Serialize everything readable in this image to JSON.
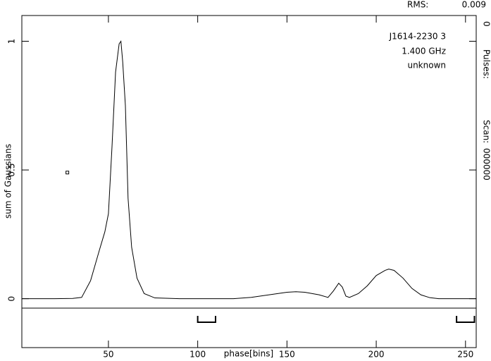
{
  "chart_data": {
    "type": "line",
    "x_label": "phase[bins]",
    "y_label": "sum of Gaussians",
    "annotations": [
      "J1614-2230 3",
      "1.400 GHz",
      "unknown"
    ],
    "rms_label": "RMS:",
    "rms": 0.009,
    "pulses_label": "Pulses:",
    "pulses": 0,
    "scan_label": "Scan:",
    "scan": "000000",
    "x": [
      1.5,
      20,
      30,
      35,
      40,
      45,
      48,
      50,
      52,
      54,
      56,
      57,
      58,
      59.5,
      61,
      63,
      66,
      70,
      76,
      90,
      120,
      130,
      140,
      150,
      155,
      160,
      168,
      173,
      176,
      179,
      181,
      183,
      185,
      190,
      195,
      200,
      205,
      207,
      210,
      215,
      220,
      225,
      230,
      235,
      256
    ],
    "series": [
      {
        "color": "#000000",
        "values": [
          0,
          0,
          0.001,
          0.005,
          0.07,
          0.19,
          0.26,
          0.33,
          0.59,
          0.88,
          0.99,
          1.0,
          0.92,
          0.75,
          0.39,
          0.2,
          0.08,
          0.02,
          0.003,
          0,
          0,
          0.005,
          0.015,
          0.025,
          0.027,
          0.025,
          0.015,
          0.005,
          0.03,
          0.06,
          0.045,
          0.01,
          0.005,
          0.02,
          0.05,
          0.09,
          0.11,
          0.115,
          0.11,
          0.08,
          0.04,
          0.015,
          0.004,
          0,
          0
        ]
      }
    ],
    "marker": {
      "x": 27,
      "y": 0.49
    },
    "windows": [
      [
        100,
        110
      ],
      [
        245,
        255
      ]
    ],
    "xlim": [
      1.5,
      256
    ],
    "ylim": [
      -0.19,
      1.1
    ],
    "xticks": [
      50,
      100,
      150,
      200,
      250
    ],
    "yticks": [
      0,
      0.5,
      1
    ]
  }
}
